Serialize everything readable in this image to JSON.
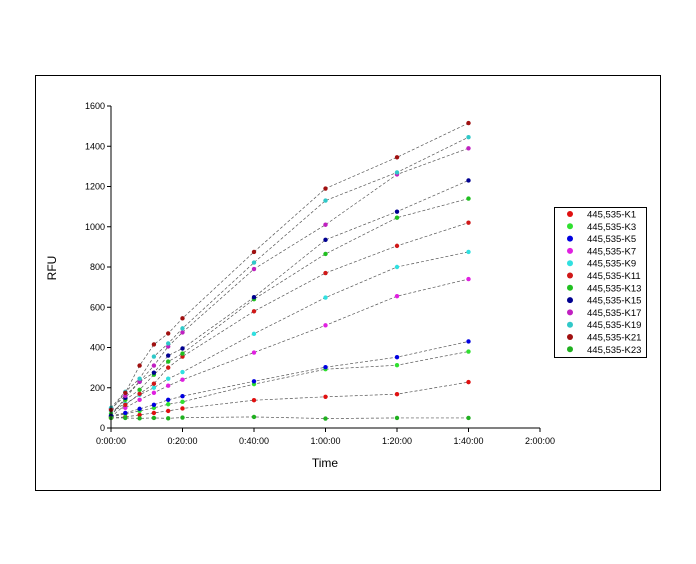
{
  "chart_data": {
    "type": "line",
    "title": "",
    "xlabel": "Time",
    "ylabel": "RFU",
    "x_unit": "minutes",
    "xlim": [
      0,
      120
    ],
    "ylim": [
      0,
      1600
    ],
    "x_ticks": [
      0,
      20,
      40,
      60,
      80,
      100,
      120
    ],
    "x_tick_labels": [
      "0:00:00",
      "0:20:00",
      "0:40:00",
      "1:00:00",
      "1:20:00",
      "1:40:00",
      "2:00:00"
    ],
    "y_ticks": [
      0,
      200,
      400,
      600,
      800,
      1000,
      1200,
      1400,
      1600
    ],
    "y_tick_labels": [
      "0",
      "200",
      "400",
      "600",
      "800",
      "1000",
      "1200",
      "1400",
      "1600"
    ],
    "grid": false,
    "legend_position": "right",
    "line_style": "dashed",
    "x": [
      0,
      4,
      8,
      12,
      16,
      20,
      40,
      60,
      80,
      100
    ],
    "series": [
      {
        "name": "445,535-K1",
        "color": "#e01010",
        "values": [
          50,
          55,
          65,
          75,
          85,
          97,
          138,
          155,
          168,
          228
        ]
      },
      {
        "name": "445,535-K3",
        "color": "#30e030",
        "values": [
          55,
          70,
          85,
          100,
          118,
          130,
          218,
          292,
          312,
          380
        ]
      },
      {
        "name": "445,535-K5",
        "color": "#0000e0",
        "values": [
          60,
          75,
          95,
          115,
          140,
          158,
          232,
          302,
          352,
          430
        ]
      },
      {
        "name": "445,535-K7",
        "color": "#e020e0",
        "values": [
          95,
          100,
          140,
          175,
          210,
          240,
          375,
          510,
          655,
          740
        ]
      },
      {
        "name": "445,535-K9",
        "color": "#30e0e0",
        "values": [
          85,
          120,
          165,
          200,
          245,
          278,
          468,
          648,
          800,
          875
        ]
      },
      {
        "name": "445,535-K11",
        "color": "#d01818",
        "values": [
          55,
          115,
          170,
          220,
          300,
          355,
          580,
          770,
          905,
          1020
        ]
      },
      {
        "name": "445,535-K13",
        "color": "#20c020",
        "values": [
          70,
          140,
          190,
          265,
          330,
          370,
          640,
          865,
          1045,
          1140
        ]
      },
      {
        "name": "445,535-K15",
        "color": "#000090",
        "values": [
          60,
          150,
          230,
          275,
          360,
          395,
          650,
          935,
          1075,
          1230
        ]
      },
      {
        "name": "445,535-K17",
        "color": "#c020c0",
        "values": [
          95,
          160,
          230,
          310,
          405,
          475,
          790,
          1010,
          1260,
          1390
        ]
      },
      {
        "name": "445,535-K19",
        "color": "#30c8c8",
        "values": [
          100,
          180,
          245,
          355,
          420,
          495,
          822,
          1130,
          1270,
          1445
        ]
      },
      {
        "name": "445,535-K21",
        "color": "#a01010",
        "values": [
          90,
          175,
          310,
          415,
          470,
          545,
          875,
          1190,
          1345,
          1515
        ]
      },
      {
        "name": "445,535-K23",
        "color": "#20b020",
        "values": [
          50,
          50,
          48,
          50,
          48,
          52,
          55,
          47,
          50,
          50
        ]
      }
    ]
  }
}
